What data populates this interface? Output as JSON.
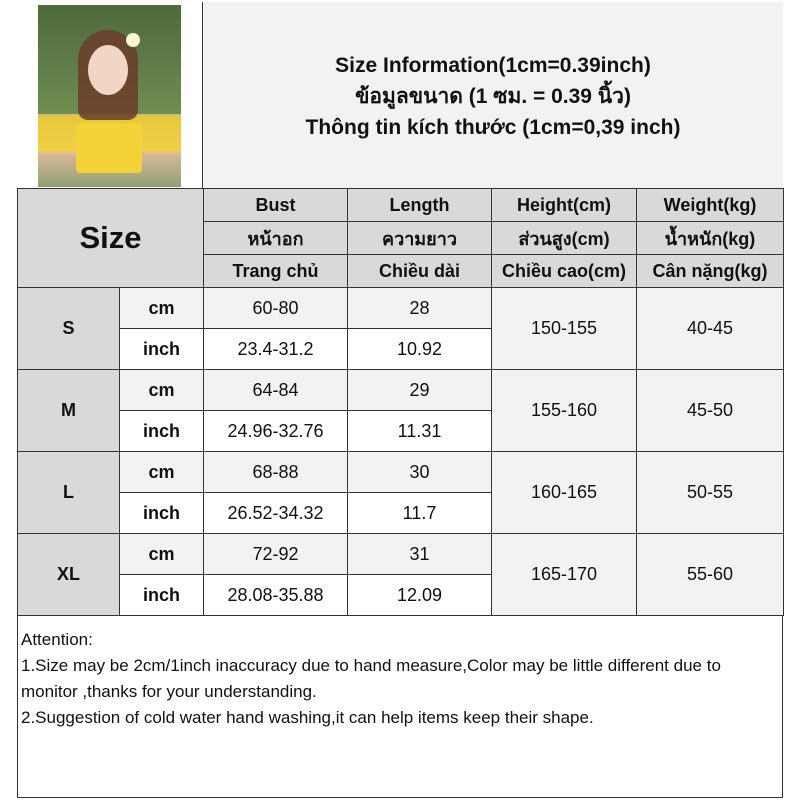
{
  "title": {
    "line1": "Size Information(1cm=0.39inch)",
    "line2": "ข้อมูลขนาด (1 ซม. = 0.39 นิ้ว)",
    "line3": "Thông tin kích thước (1cm=0,39 inch)"
  },
  "table": {
    "size_label": "Size",
    "headers": [
      [
        "Bust",
        "หน้าอก",
        "Trang chủ"
      ],
      [
        "Length",
        "ความยาว",
        "Chiều dài"
      ],
      [
        "Height(cm)",
        "ส่วนสูง(cm)",
        "Chiều cao(cm)"
      ],
      [
        "Weight(kg)",
        "น้ำหนัก(kg)",
        "Cân nặng(kg)"
      ]
    ],
    "rows": [
      {
        "size": "S",
        "cm_label": "cm",
        "inch_label": "inch",
        "bust_cm": "60-80",
        "length_cm": "28",
        "bust_inch": "23.4-31.2",
        "length_inch": "10.92",
        "height": "150-155",
        "weight": "40-45"
      },
      {
        "size": "M",
        "cm_label": "cm",
        "inch_label": "inch",
        "bust_cm": "64-84",
        "length_cm": "29",
        "bust_inch": "24.96-32.76",
        "length_inch": "11.31",
        "height": "155-160",
        "weight": "45-50"
      },
      {
        "size": "L",
        "cm_label": "cm",
        "inch_label": "inch",
        "bust_cm": "68-88",
        "length_cm": "30",
        "bust_inch": "26.52-34.32",
        "length_inch": "11.7",
        "height": "160-165",
        "weight": "50-55"
      },
      {
        "size": "XL",
        "cm_label": "cm",
        "inch_label": "inch",
        "bust_cm": "72-92",
        "length_cm": "31",
        "bust_inch": "28.08-35.88",
        "length_inch": "12.09",
        "height": "165-170",
        "weight": "55-60"
      }
    ]
  },
  "notes": {
    "heading": "Attention:",
    "items": [
      "1.Size may be 2cm/1inch inaccuracy due to hand measure,Color may be little different due to monitor ,thanks for your understanding.",
      "2.Suggestion of cold water hand washing,it can help items keep their shape."
    ]
  }
}
